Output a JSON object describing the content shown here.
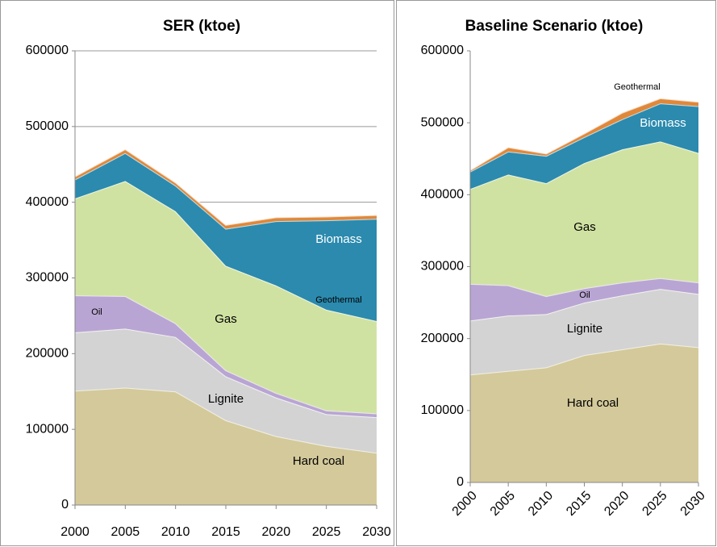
{
  "chart_data": [
    {
      "type": "stacked-area",
      "title": "SER (ktoe)",
      "x": [
        2000,
        2005,
        2010,
        2015,
        2020,
        2025,
        2030
      ],
      "xlim": [
        2000,
        2030
      ],
      "xticks": [
        2000,
        2005,
        2010,
        2015,
        2020,
        2025,
        2030
      ],
      "ylim": [
        0,
        600000
      ],
      "yticks": [
        0,
        100000,
        200000,
        300000,
        400000,
        500000,
        600000
      ],
      "grid": true,
      "series": [
        {
          "name": "Hard coal",
          "color": "#d4c99a",
          "values": [
            151000,
            155000,
            150000,
            112000,
            91000,
            78000,
            69000
          ]
        },
        {
          "name": "Lignite",
          "color": "#d3d3d3",
          "values": [
            77000,
            78000,
            72000,
            58000,
            51000,
            42000,
            47000
          ]
        },
        {
          "name": "Oil",
          "color": "#b9a5d3",
          "values": [
            49000,
            43000,
            18000,
            8000,
            6000,
            5000,
            5000
          ]
        },
        {
          "name": "Gas",
          "color": "#d0e2a2",
          "values": [
            128000,
            152000,
            148000,
            138000,
            142000,
            133000,
            122000
          ]
        },
        {
          "name": "Biomass",
          "color": "#2b8aae",
          "values": [
            25000,
            37000,
            34000,
            49000,
            85000,
            118000,
            135000
          ]
        },
        {
          "name": "Geothermal",
          "color": "#e0883a",
          "values": [
            4000,
            5000,
            4000,
            5000,
            5000,
            5000,
            5000
          ]
        }
      ]
    },
    {
      "type": "stacked-area",
      "title": "Baseline Scenario (ktoe)",
      "x": [
        2000,
        2005,
        2010,
        2015,
        2020,
        2025,
        2030
      ],
      "xlim": [
        2000,
        2030
      ],
      "xticks": [
        2000,
        2005,
        2010,
        2015,
        2020,
        2025,
        2030
      ],
      "ylim": [
        0,
        600000
      ],
      "yticks": [
        0,
        100000,
        200000,
        300000,
        400000,
        500000,
        600000
      ],
      "grid": false,
      "series": [
        {
          "name": "Hard coal",
          "color": "#d4c99a",
          "values": [
            150000,
            155000,
            160000,
            177000,
            185000,
            193000,
            188000
          ]
        },
        {
          "name": "Lignite",
          "color": "#d3d3d3",
          "values": [
            75000,
            77000,
            74000,
            73000,
            75000,
            76000,
            74000
          ]
        },
        {
          "name": "Oil",
          "color": "#b9a5d3",
          "values": [
            51000,
            42000,
            25000,
            20000,
            18000,
            15000,
            16000
          ]
        },
        {
          "name": "Gas",
          "color": "#d0e2a2",
          "values": [
            132000,
            154000,
            157000,
            174000,
            185000,
            190000,
            180000
          ]
        },
        {
          "name": "Biomass",
          "color": "#2b8aae",
          "values": [
            24000,
            32000,
            38000,
            36000,
            42000,
            53000,
            65000
          ]
        },
        {
          "name": "Geothermal",
          "color": "#e0883a",
          "values": [
            2000,
            6000,
            3000,
            5000,
            9000,
            7000,
            6000
          ]
        }
      ]
    }
  ]
}
